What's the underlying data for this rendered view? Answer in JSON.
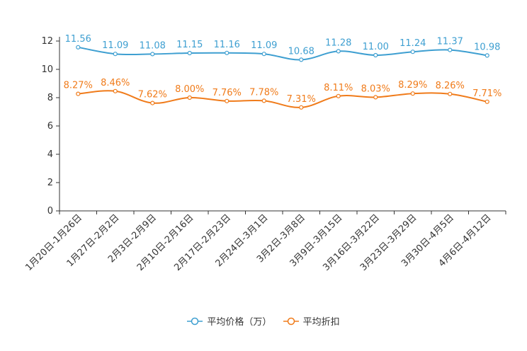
{
  "chart_data": {
    "type": "line",
    "categories": [
      "1月20日-1月26日",
      "1月27日-2月2日",
      "2月3日-2月9日",
      "2月10日-2月16日",
      "2月17日-2月23日",
      "2月24日-3月1日",
      "3月2日-3月8日",
      "3月9日-3月15日",
      "3月16日-3月22日",
      "3月23日-3月29日",
      "3月30日-4月5日",
      "4月6日-4月12日"
    ],
    "series": [
      {
        "name": "平均价格（万）",
        "color": "#3e9fd1",
        "values": [
          11.56,
          11.09,
          11.08,
          11.15,
          11.16,
          11.09,
          10.68,
          11.28,
          11.0,
          11.24,
          11.37,
          10.98
        ],
        "labels": [
          "11.56",
          "11.09",
          "11.08",
          "11.15",
          "11.16",
          "11.09",
          "10.68",
          "11.28",
          "11.00",
          "11.24",
          "11.37",
          "10.98"
        ]
      },
      {
        "name": "平均折扣",
        "color": "#f07b1a",
        "values": [
          8.27,
          8.46,
          7.62,
          8.0,
          7.76,
          7.78,
          7.31,
          8.11,
          8.03,
          8.29,
          8.26,
          7.71
        ],
        "labels": [
          "8.27%",
          "8.46%",
          "7.62%",
          "8.00%",
          "7.76%",
          "7.78%",
          "7.31%",
          "8.11%",
          "8.03%",
          "8.29%",
          "8.26%",
          "7.71%"
        ]
      }
    ],
    "yticks": [
      0,
      2,
      4,
      6,
      8,
      10,
      12
    ],
    "ylim": [
      0,
      12
    ],
    "grid": false,
    "legend_position": "bottom-center"
  }
}
